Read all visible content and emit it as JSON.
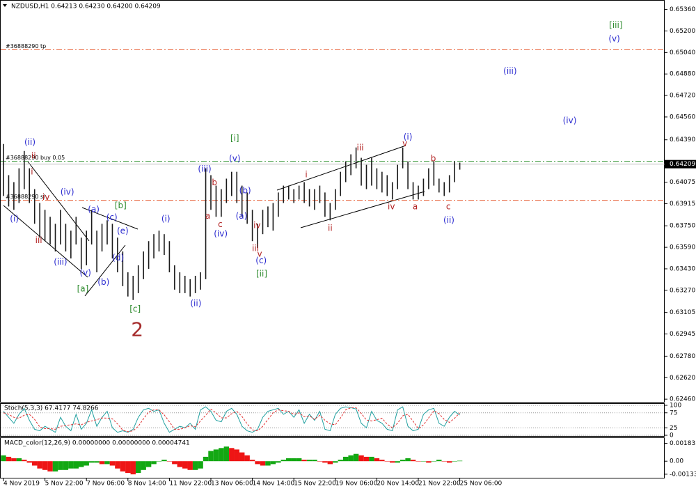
{
  "chart_data": [
    {
      "type": "ohlc",
      "title": "NZDUSD,H1  0.64213 0.64230 0.64200 0.64209",
      "categories": [
        "4 Nov 2019",
        null,
        null,
        null,
        null,
        null,
        null,
        null,
        "5 Nov 22:00",
        null,
        null,
        null,
        null,
        null,
        null,
        null,
        "7 Nov 06:00",
        null,
        null,
        null,
        null,
        null,
        null,
        null,
        "8 Nov 14:00",
        null,
        null,
        null,
        null,
        null,
        null,
        null,
        "11 Nov 22:00",
        null,
        null,
        null,
        null,
        null,
        null,
        null,
        "13 Nov 06:00",
        null,
        null,
        null,
        null,
        null,
        null,
        null,
        "14 Nov 14:00",
        null,
        null,
        null,
        null,
        null,
        null,
        null,
        "15 Nov 22:00",
        null,
        null,
        null,
        null,
        null,
        null,
        null,
        "19 Nov 06:00",
        null,
        null,
        null,
        null,
        null,
        null,
        null,
        "20 Nov 14:00",
        null,
        null,
        null,
        null,
        null,
        null,
        null,
        "21 Nov 22:00",
        null,
        null,
        null,
        null,
        null,
        null,
        null,
        "25 Nov 06:00"
      ],
      "high": [
        0.64359,
        0.64127,
        0.64075,
        0.64178,
        0.64307,
        0.64178,
        0.64023,
        0.6392,
        0.63869,
        0.63817,
        0.63765,
        0.63869,
        0.63765,
        0.63714,
        0.63817,
        0.63662,
        0.63714,
        0.63869,
        0.63714,
        0.63765,
        0.63791,
        0.63765,
        0.63662,
        0.63559,
        0.63404,
        0.63378,
        0.63456,
        0.63559,
        0.63636,
        0.63688,
        0.63714,
        0.63688,
        0.63636,
        0.63456,
        0.63404,
        0.63378,
        0.63353,
        0.63378,
        0.63404,
        0.64178,
        0.64127,
        0.64049,
        0.64023,
        0.64101,
        0.64152,
        0.64152,
        0.64049,
        0.63998,
        0.63869,
        0.63765,
        0.63869,
        0.63894,
        0.6392,
        0.63998,
        0.64049,
        0.64049,
        0.64023,
        0.64049,
        0.64075,
        0.64023,
        0.64023,
        0.64049,
        0.63998,
        0.6392,
        0.64023,
        0.64152,
        0.6423,
        0.64282,
        0.64333,
        0.64256,
        0.64204,
        0.64256,
        0.64178,
        0.64152,
        0.64127,
        0.64075,
        0.64204,
        0.64333,
        0.6423,
        0.64075,
        0.64049,
        0.64101,
        0.64178,
        0.6423,
        0.64101,
        0.64075,
        0.64127,
        0.6423,
        0.6422
      ],
      "low": [
        0.63972,
        0.63894,
        0.63869,
        0.6392,
        0.64023,
        0.6392,
        0.63765,
        0.63662,
        0.63636,
        0.63611,
        0.63559,
        0.63611,
        0.63559,
        0.63507,
        0.63611,
        0.6343,
        0.63456,
        0.63611,
        0.63404,
        0.63559,
        0.63611,
        0.63507,
        0.63404,
        0.63301,
        0.63224,
        0.63198,
        0.63249,
        0.63353,
        0.6343,
        0.63507,
        0.63559,
        0.63533,
        0.63404,
        0.63275,
        0.63249,
        0.63249,
        0.63224,
        0.63249,
        0.63275,
        0.63353,
        0.63869,
        0.63817,
        0.63817,
        0.6392,
        0.63972,
        0.6392,
        0.63817,
        0.63765,
        0.63636,
        0.63585,
        0.63688,
        0.6374,
        0.63714,
        0.63817,
        0.6392,
        0.63946,
        0.6392,
        0.63946,
        0.6392,
        0.63894,
        0.63869,
        0.6392,
        0.63817,
        0.63791,
        0.63869,
        0.63972,
        0.64075,
        0.64127,
        0.64178,
        0.64049,
        0.64023,
        0.64049,
        0.64023,
        0.63998,
        0.63972,
        0.63946,
        0.64023,
        0.64178,
        0.64023,
        0.63946,
        0.63946,
        0.63972,
        0.64023,
        0.64049,
        0.63998,
        0.63972,
        0.63998,
        0.64075,
        0.64168
      ],
      "color": "#1a1a1a",
      "ylim": [
        0.6244,
        0.6542
      ],
      "yticks": [
        {
          "value": 0.6246,
          "label": "0.62460"
        },
        {
          "value": 0.6262,
          "label": "0.62620"
        },
        {
          "value": 0.6278,
          "label": "0.62780"
        },
        0.62945,
        0.63105,
        {
          "value": 0.6327,
          "label": "0.63270"
        },
        {
          "value": 0.6343,
          "label": "0.63430"
        },
        {
          "value": 0.6359,
          "label": "0.63590"
        },
        {
          "value": 0.6375,
          "label": "0.63750"
        },
        0.63915,
        0.64075,
        {
          "value": 0.6439,
          "label": "0.64390"
        },
        {
          "value": 0.6456,
          "label": "0.64560"
        },
        {
          "value": 0.6472,
          "label": "0.64720"
        },
        {
          "value": 0.6488,
          "label": "0.64880"
        },
        {
          "value": 0.6504,
          "label": "0.65040"
        },
        {
          "value": 0.652,
          "label": "0.65200"
        },
        {
          "value": 0.6536,
          "label": "0.65360"
        }
      ],
      "last_price": 0.64209,
      "orders": [
        {
          "label": "#36888290 tp",
          "price": 0.6506,
          "color": "#e8623a"
        },
        {
          "label": "#36888290 buy 0.05",
          "price": 0.6423,
          "color": "#3a9a3a"
        },
        {
          "label": "#36888290 sl",
          "price": 0.6394,
          "color": "#e8623a"
        }
      ],
      "annotations": [
        {
          "text": "(ii)",
          "x": 5.1,
          "y": 0.6437,
          "color": "#2b2bd0"
        },
        {
          "text": "ii",
          "x": 5.8,
          "y": 0.6427,
          "color": "#b22222"
        },
        {
          "text": "i",
          "x": 5.5,
          "y": 0.6415,
          "color": "#b22222"
        },
        {
          "text": "iv",
          "x": 8.2,
          "y": 0.6396,
          "color": "#b22222"
        },
        {
          "text": "(iv)",
          "x": 12.3,
          "y": 0.64,
          "color": "#2b2bd0"
        },
        {
          "text": "(i)",
          "x": 2.1,
          "y": 0.638,
          "color": "#2b2bd0"
        },
        {
          "text": "iii",
          "x": 6.8,
          "y": 0.6364,
          "color": "#b22222"
        },
        {
          "text": "(iii)",
          "x": 11,
          "y": 0.6348,
          "color": "#2b2bd0"
        },
        {
          "text": "(v)",
          "x": 15.8,
          "y": 0.634,
          "color": "#2b2bd0"
        },
        {
          "text": "[a]",
          "x": 15.3,
          "y": 0.6328,
          "color": "#2e8b2e"
        },
        {
          "text": "(a)",
          "x": 17.4,
          "y": 0.6387,
          "color": "#2b2bd0"
        },
        {
          "text": "(c)",
          "x": 20.9,
          "y": 0.6381,
          "color": "#2b2bd0"
        },
        {
          "text": "[b]",
          "x": 22.6,
          "y": 0.639,
          "color": "#2e8b2e"
        },
        {
          "text": "(e)",
          "x": 23,
          "y": 0.6371,
          "color": "#2b2bd0"
        },
        {
          "text": "(d)",
          "x": 22.1,
          "y": 0.6351,
          "color": "#2b2bd0"
        },
        {
          "text": "(b)",
          "x": 19.3,
          "y": 0.6333,
          "color": "#2b2bd0"
        },
        {
          "text": "[c]",
          "x": 25.4,
          "y": 0.6313,
          "color": "#2e8b2e"
        },
        {
          "text": "(i)",
          "x": 31.3,
          "y": 0.638,
          "color": "#2b2bd0"
        },
        {
          "text": "(ii)",
          "x": 37.1,
          "y": 0.6317,
          "color": "#2b2bd0"
        },
        {
          "text": "(iii)",
          "x": 38.8,
          "y": 0.6417,
          "color": "#2b2bd0"
        },
        {
          "text": "b",
          "x": 40.7,
          "y": 0.6407,
          "color": "#b22222"
        },
        {
          "text": "a",
          "x": 39.4,
          "y": 0.6382,
          "color": "#b22222"
        },
        {
          "text": "c",
          "x": 41.8,
          "y": 0.6376,
          "color": "#b22222"
        },
        {
          "text": "(iv)",
          "x": 41.9,
          "y": 0.6369,
          "color": "#2b2bd0"
        },
        {
          "text": "[i]",
          "x": 44.6,
          "y": 0.644,
          "color": "#2e8b2e"
        },
        {
          "text": "(v)",
          "x": 44.6,
          "y": 0.6425,
          "color": "#2b2bd0"
        },
        {
          "text": "(b)",
          "x": 46.6,
          "y": 0.6401,
          "color": "#2b2bd0"
        },
        {
          "text": "(a)",
          "x": 45.9,
          "y": 0.6382,
          "color": "#2b2bd0"
        },
        {
          "text": "iv",
          "x": 48.9,
          "y": 0.6375,
          "color": "#b22222"
        },
        {
          "text": "iii",
          "x": 48.6,
          "y": 0.6358,
          "color": "#b22222"
        },
        {
          "text": "v",
          "x": 49.4,
          "y": 0.6354,
          "color": "#b22222"
        },
        {
          "text": "(c)",
          "x": 49.7,
          "y": 0.6349,
          "color": "#2b2bd0"
        },
        {
          "text": "[ii]",
          "x": 49.8,
          "y": 0.6339,
          "color": "#2e8b2e"
        },
        {
          "text": "i",
          "x": 58.4,
          "y": 0.6413,
          "color": "#b22222"
        },
        {
          "text": "ii",
          "x": 63,
          "y": 0.6373,
          "color": "#b22222"
        },
        {
          "text": "iii",
          "x": 68.8,
          "y": 0.6433,
          "color": "#b22222"
        },
        {
          "text": "iv",
          "x": 74.8,
          "y": 0.6389,
          "color": "#b22222"
        },
        {
          "text": "(i)",
          "x": 78,
          "y": 0.6441,
          "color": "#2b2bd0"
        },
        {
          "text": "v",
          "x": 77.4,
          "y": 0.6436,
          "color": "#b22222"
        },
        {
          "text": "a",
          "x": 79.4,
          "y": 0.6389,
          "color": "#b22222"
        },
        {
          "text": "b",
          "x": 82.9,
          "y": 0.6425,
          "color": "#b22222"
        },
        {
          "text": "c",
          "x": 85.8,
          "y": 0.6389,
          "color": "#b22222"
        },
        {
          "text": "(ii)",
          "x": 85.9,
          "y": 0.6379,
          "color": "#2b2bd0"
        },
        {
          "text": "(iii)",
          "x": 97.7,
          "y": 0.649,
          "color": "#2b2bd0"
        },
        {
          "text": "(iv)",
          "x": 109.2,
          "y": 0.6453,
          "color": "#2b2bd0"
        },
        {
          "text": "[iii]",
          "x": 118.1,
          "y": 0.6524,
          "color": "#2e8b2e"
        },
        {
          "text": "(v)",
          "x": 117.8,
          "y": 0.6514,
          "color": "#2b2bd0"
        }
      ],
      "primary_label": {
        "text": "2",
        "x": 25.8,
        "y": 0.6297,
        "color": "#a52a2a"
      }
    },
    {
      "type": "line",
      "title": "Stoch(5,3,3) 67.4177 74.8266",
      "series": [
        {
          "color": "#20a0a0",
          "values": [
            80,
            60,
            40,
            70,
            90,
            50,
            20,
            15,
            30,
            20,
            10,
            60,
            30,
            15,
            70,
            20,
            40,
            85,
            30,
            60,
            80,
            25,
            10,
            15,
            10,
            20,
            60,
            85,
            90,
            80,
            85,
            40,
            10,
            20,
            30,
            25,
            40,
            20,
            85,
            95,
            80,
            50,
            45,
            80,
            90,
            70,
            30,
            15,
            10,
            20,
            60,
            80,
            85,
            90,
            70,
            80,
            60,
            85,
            40,
            70,
            50,
            80,
            20,
            15,
            70,
            90,
            95,
            92,
            88,
            40,
            25,
            80,
            50,
            40,
            20,
            15,
            85,
            95,
            30,
            15,
            20,
            70,
            85,
            90,
            40,
            30,
            60,
            80,
            67.4177
          ]
        },
        {
          "color": "#e03030",
          "dash": true,
          "values": [
            75,
            70,
            60,
            57,
            67,
            70,
            53,
            28,
            22,
            22,
            20,
            30,
            33,
            35,
            38,
            35,
            43,
            48,
            52,
            58,
            57,
            55,
            38,
            17,
            12,
            15,
            30,
            55,
            78,
            85,
            85,
            68,
            45,
            20,
            20,
            25,
            32,
            28,
            48,
            67,
            87,
            75,
            58,
            58,
            72,
            80,
            63,
            38,
            18,
            15,
            30,
            53,
            75,
            85,
            82,
            80,
            70,
            75,
            62,
            65,
            53,
            67,
            50,
            38,
            35,
            58,
            85,
            92,
            92,
            73,
            51,
            48,
            52,
            57,
            37,
            25,
            40,
            65,
            70,
            47,
            22,
            35,
            58,
            82,
            72,
            53,
            43,
            57,
            74.8266
          ]
        }
      ],
      "ylim": [
        0,
        100
      ],
      "yticks": [
        0,
        25,
        75,
        100
      ]
    },
    {
      "type": "bar",
      "title": "MACD_color(12,26,9) 0.00000000 0.00000000 0.00004741",
      "values": [
        0.0006,
        0.00045,
        0.0003,
        0.0003,
        0.00015,
        -0.00015,
        -0.00045,
        -0.00075,
        -0.0009,
        -0.00105,
        -0.00105,
        -0.0009,
        -0.0009,
        -0.00075,
        -0.00075,
        -0.0006,
        -0.00045,
        -0.00015,
        -0.00015,
        -0.0003,
        -0.0003,
        -0.00045,
        -0.00075,
        -0.00105,
        -0.0012,
        -0.00135,
        -0.0012,
        -0.0009,
        -0.0006,
        -0.0003,
        0,
        0.00015,
        0,
        -0.0003,
        -0.0006,
        -0.00075,
        -0.0009,
        -0.0009,
        -0.00075,
        0.00045,
        0.00105,
        0.0012,
        0.00135,
        0.0015,
        0.00135,
        0.0012,
        0.0009,
        0.0006,
        0.00015,
        -0.0003,
        -0.00045,
        -0.00045,
        -0.0003,
        -0.00015,
        0.00015,
        0.0003,
        0.0003,
        0.0003,
        0.00015,
        0.00015,
        0.00015,
        0,
        -0.00015,
        -0.0003,
        -0.00015,
        0.00015,
        0.00045,
        0.0006,
        0.00075,
        0.0006,
        0.00045,
        0.00045,
        0.0003,
        0.00015,
        0,
        -0.00015,
        -0.00015,
        0.00015,
        0.0003,
        0.00015,
        0,
        0,
        -0.00015,
        0,
        0.00015,
        0,
        -0.00015,
        0,
        4.741e-05
      ],
      "colors": [
        "#13a813",
        "#ee1515"
      ],
      "ylim": [
        -0.0017,
        0.0023
      ],
      "yticks": [
        -0.001335,
        {
          "value": 0,
          "label": "0.00"
        },
        0.0018331
      ]
    }
  ]
}
